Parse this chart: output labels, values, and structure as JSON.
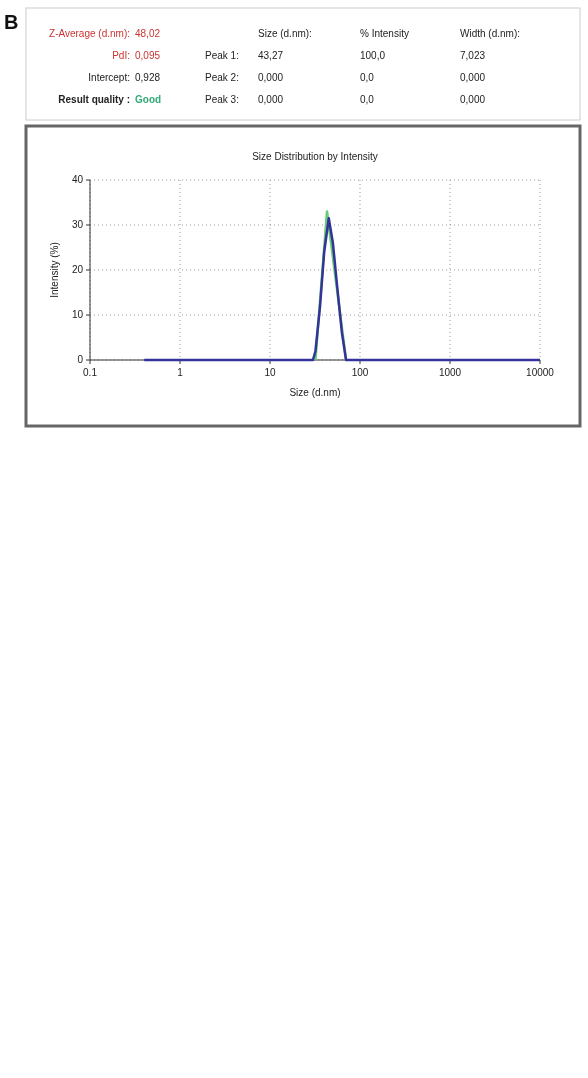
{
  "chart_data": {
    "type": "line",
    "title": "Size Distribution by Intensity",
    "xlabel": "Size (d.nm)",
    "ylabel": "Intensity (%)",
    "log": "x",
    "xlim": [
      0.1,
      10000
    ],
    "xticks": [
      0.1,
      1,
      10,
      100,
      1000,
      10000
    ],
    "ylim": [
      0,
      40
    ],
    "yticks": [
      0,
      10,
      20,
      30,
      40
    ],
    "grid": true,
    "line_style": "solid",
    "series": [
      {
        "color": "#66cc77",
        "x": [
          32,
          43,
          70
        ],
        "values": [
          0,
          33,
          0
        ]
      },
      {
        "color": "#333399",
        "x": [
          0.4,
          30,
          32,
          36,
          40,
          45,
          50,
          56,
          63,
          70,
          10000
        ],
        "values": [
          0,
          0,
          2,
          12,
          24,
          31.5,
          26,
          16,
          6,
          0,
          0
        ]
      }
    ],
    "annotations": [
      "Z-Average (d.nm):",
      "48,02",
      "PdI:",
      "0,095",
      "Intercept:",
      "0,928",
      "Result quality :",
      "Good",
      "Size (d.nm):",
      "% Intensity",
      "Width (d.nm):",
      "Peak 1:",
      "43,27",
      "100,0",
      "7,023",
      "Peak 2:",
      "0,000",
      "0,0",
      "0,000",
      "Peak 3:",
      "0,000",
      "0,0",
      "0,000",
      "B"
    ]
  }
}
